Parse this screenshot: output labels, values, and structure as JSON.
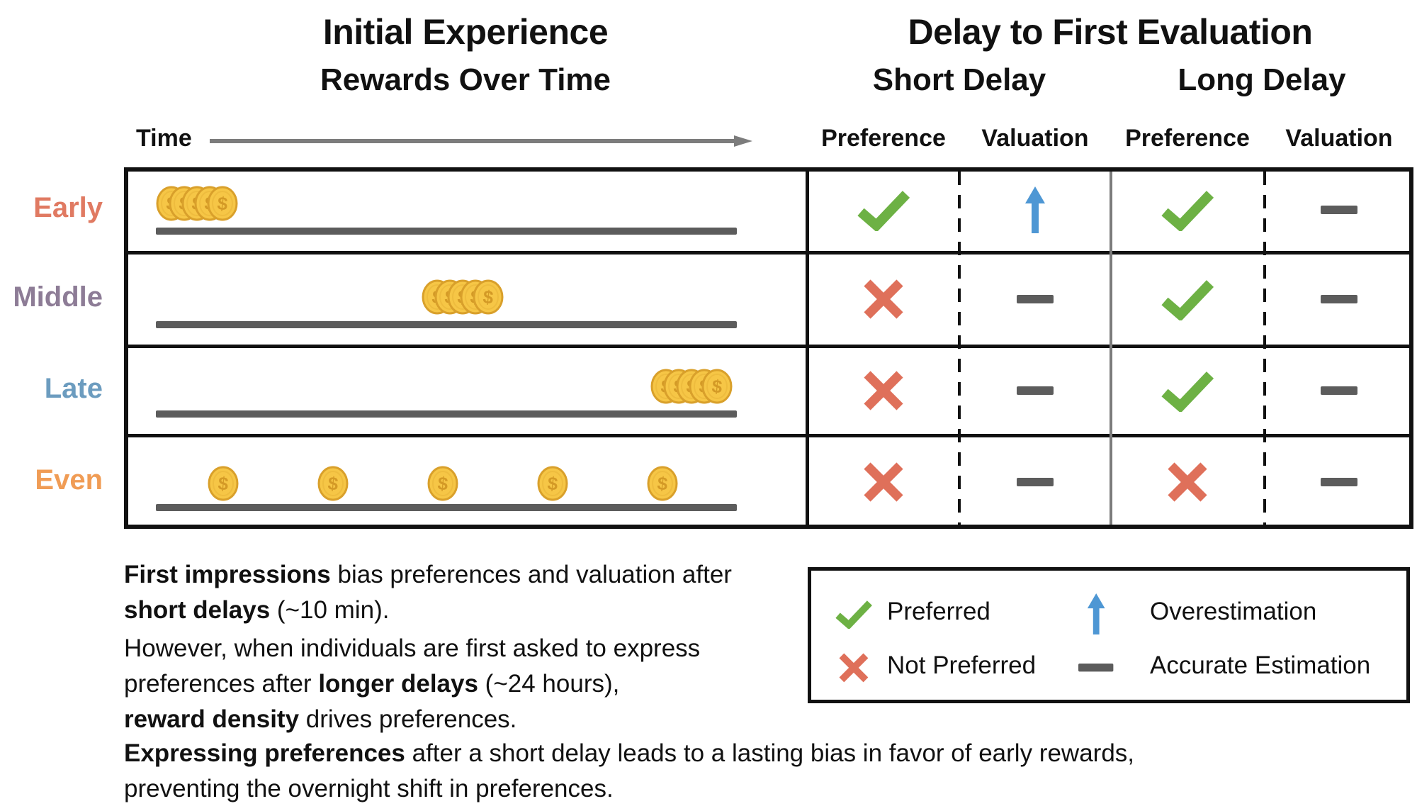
{
  "left_panel": {
    "title": "Initial Experience",
    "subtitle": "Rewards Over Time",
    "time_label": "Time"
  },
  "right_panel": {
    "title": "Delay to First Evaluation",
    "groups": [
      {
        "label": "Short Delay",
        "columns": [
          "Preference",
          "Valuation"
        ]
      },
      {
        "label": "Long Delay",
        "columns": [
          "Preference",
          "Valuation"
        ]
      }
    ]
  },
  "rows": [
    {
      "label": "Early",
      "color": "#e07a62",
      "reward_timing": "early",
      "marks": [
        "check",
        "up",
        "check",
        "dash"
      ]
    },
    {
      "label": "Middle",
      "color": "#8d7c96",
      "reward_timing": "middle",
      "marks": [
        "x",
        "dash",
        "check",
        "dash"
      ]
    },
    {
      "label": "Late",
      "color": "#6c9cbf",
      "reward_timing": "late",
      "marks": [
        "x",
        "dash",
        "check",
        "dash"
      ]
    },
    {
      "label": "Even",
      "color": "#f09c55",
      "reward_timing": "even",
      "marks": [
        "x",
        "dash",
        "x",
        "dash"
      ]
    }
  ],
  "legend": {
    "items": [
      {
        "icon": "check",
        "label": "Preferred"
      },
      {
        "icon": "up",
        "label": "Overestimation"
      },
      {
        "icon": "x",
        "label": "Not Preferred"
      },
      {
        "icon": "dash",
        "label": "Accurate Estimation"
      }
    ]
  },
  "paragraphs": [
    [
      [
        {
          "t": "First impressions",
          "b": true
        },
        {
          "t": " bias preferences and valuation after",
          "b": false
        }
      ],
      [
        {
          "t": "short delays",
          "b": true
        },
        {
          "t": " (~10 min).",
          "b": false
        }
      ]
    ],
    [
      [
        {
          "t": "However, when individuals are first asked to express",
          "b": false
        }
      ],
      [
        {
          "t": "preferences after ",
          "b": false
        },
        {
          "t": "longer delays",
          "b": true
        },
        {
          "t": " (~24 hours),",
          "b": false
        }
      ],
      [
        {
          "t": "reward density",
          "b": true
        },
        {
          "t": " drives preferences.",
          "b": false
        }
      ]
    ],
    [
      [
        {
          "t": "Expressing preferences",
          "b": true
        },
        {
          "t": " after a short delay leads to a lasting bias in favor of early rewards,",
          "b": false
        }
      ],
      [
        {
          "t": "preventing the overnight shift in preferences.",
          "b": false
        }
      ]
    ]
  ],
  "colors": {
    "check_green": "#6db144",
    "x_red": "#df705a",
    "arrow_blue": "#4e97d4",
    "dash_gray": "#5c5c5c",
    "coin_gold": "#f6c646",
    "coin_rim": "#d9a02b",
    "coin_symbol": "#d49a26"
  }
}
